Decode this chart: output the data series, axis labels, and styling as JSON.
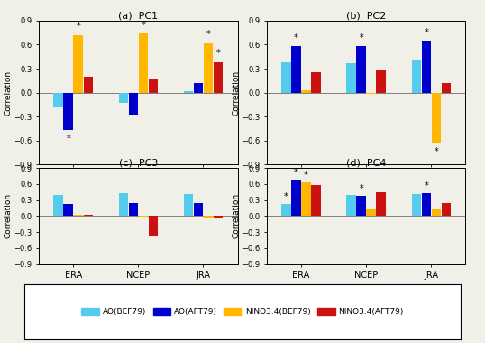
{
  "panels": [
    {
      "title": "(a)  PC1",
      "groups": [
        "ERA",
        "NCEP",
        "JRA"
      ],
      "bars": {
        "AO_BEF79": [
          -0.18,
          -0.13,
          0.02
        ],
        "AO_AFT79": [
          -0.47,
          -0.27,
          0.12
        ],
        "NINO_BEF79": [
          0.72,
          0.74,
          0.62
        ],
        "NINO_AFT79": [
          0.2,
          0.16,
          0.38
        ]
      },
      "sig": {
        "AO_BEF79": [
          false,
          false,
          false
        ],
        "AO_AFT79": [
          true,
          false,
          false
        ],
        "NINO_BEF79": [
          true,
          true,
          true
        ],
        "NINO_AFT79": [
          false,
          false,
          true
        ]
      }
    },
    {
      "title": "(b)  PC2",
      "groups": [
        "ERA",
        "NCEP",
        "JRA"
      ],
      "bars": {
        "AO_BEF79": [
          0.38,
          0.37,
          0.4
        ],
        "AO_AFT79": [
          0.58,
          0.58,
          0.65
        ],
        "NINO_BEF79": [
          0.03,
          -0.02,
          -0.63
        ],
        "NINO_AFT79": [
          0.25,
          0.28,
          0.12
        ]
      },
      "sig": {
        "AO_BEF79": [
          false,
          false,
          false
        ],
        "AO_AFT79": [
          true,
          true,
          true
        ],
        "NINO_BEF79": [
          false,
          false,
          true
        ],
        "NINO_AFT79": [
          false,
          false,
          false
        ]
      }
    },
    {
      "title": "(c)  PC3",
      "groups": [
        "ERA",
        "NCEP",
        "JRA"
      ],
      "bars": {
        "AO_BEF79": [
          0.4,
          0.43,
          0.42
        ],
        "AO_AFT79": [
          0.22,
          0.25,
          0.25
        ],
        "NINO_BEF79": [
          0.02,
          -0.01,
          -0.04
        ],
        "NINO_AFT79": [
          0.03,
          -0.37,
          -0.05
        ]
      },
      "sig": {
        "AO_BEF79": [
          false,
          false,
          false
        ],
        "AO_AFT79": [
          false,
          false,
          false
        ],
        "NINO_BEF79": [
          false,
          false,
          false
        ],
        "NINO_AFT79": [
          false,
          false,
          false
        ]
      }
    },
    {
      "title": "(d)  PC4",
      "groups": [
        "ERA",
        "NCEP",
        "JRA"
      ],
      "bars": {
        "AO_BEF79": [
          0.22,
          0.4,
          0.42
        ],
        "AO_AFT79": [
          0.68,
          0.38,
          0.43
        ],
        "NINO_BEF79": [
          0.63,
          0.12,
          0.14
        ],
        "NINO_AFT79": [
          0.58,
          0.45,
          0.25
        ]
      },
      "sig": {
        "AO_BEF79": [
          true,
          false,
          false
        ],
        "AO_AFT79": [
          true,
          true,
          true
        ],
        "NINO_BEF79": [
          true,
          false,
          false
        ],
        "NINO_AFT79": [
          false,
          false,
          false
        ]
      }
    }
  ],
  "colors": {
    "AO_BEF79": "#55CCEE",
    "AO_AFT79": "#0000CC",
    "NINO_BEF79": "#FFB700",
    "NINO_AFT79": "#CC1111"
  },
  "legend_labels": {
    "AO_BEF79": "AO(BEF79)",
    "AO_AFT79": "AO(AFT79)",
    "NINO_BEF79": "NINO3.4(BEF79)",
    "NINO_AFT79": "NINO3.4(AFT79)"
  },
  "ylim": [
    -0.9,
    0.9
  ],
  "yticks": [
    -0.9,
    -0.6,
    -0.3,
    0.0,
    0.3,
    0.6,
    0.9
  ],
  "ylabel": "Correlation",
  "bar_width": 0.13,
  "bg_color": "#F0F0E8",
  "panel_bg": "#F0F0E8"
}
